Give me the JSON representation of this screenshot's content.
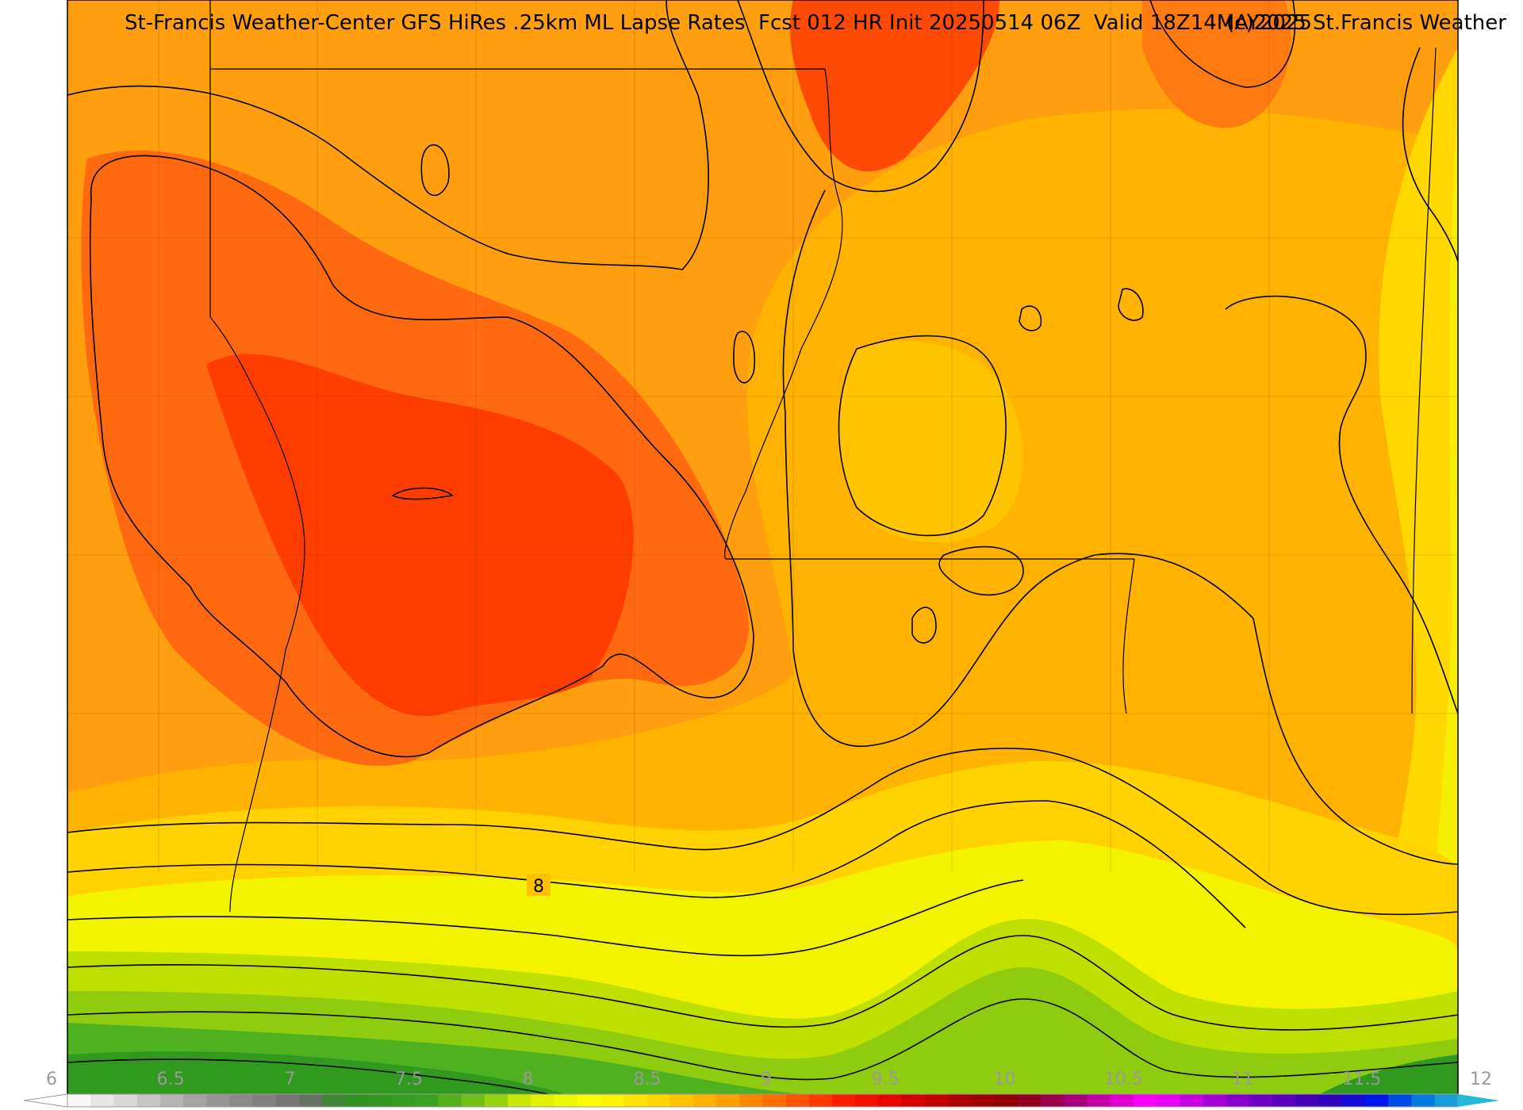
{
  "header": {
    "title_left": "St-Francis Weather-Center GFS HiRes .25km ML Lapse Rates  Fcst 012 HR Init 20250514 06Z  Valid 18Z14MAY2025",
    "title_right": "(c)2025 St.Francis Weather"
  },
  "map": {
    "contour_label": "8",
    "fill_colors": {
      "green_dark": "#2f9a1e",
      "green": "#4fb020",
      "yellow_green": "#bde000",
      "yellow": "#f3f300",
      "yellow_orange": "#ffd200",
      "orange_light": "#ffb300",
      "orange": "#ff8f10",
      "orange_red": "#ff6a10",
      "red": "#ff3d00"
    }
  },
  "colorbar": {
    "ticks": [
      "6",
      "6.5",
      "7",
      "7.5",
      "8",
      "8.5",
      "9",
      "9.5",
      "10",
      "10.5",
      "11",
      "11.5",
      "12"
    ]
  }
}
